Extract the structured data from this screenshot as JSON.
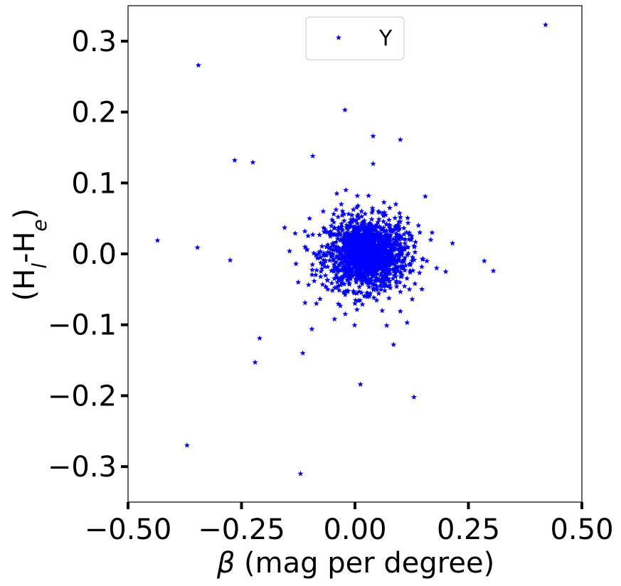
{
  "chart_data": {
    "type": "scatter",
    "xlabel_symbol": "β",
    "xlabel_text": " (mag per degree)",
    "ylabel_main": "(H",
    "ylabel_sub1": "l",
    "ylabel_mid": "-H",
    "ylabel_sub2": "e",
    "ylabel_end": ")",
    "xlim": [
      -0.5,
      0.5
    ],
    "ylim": [
      -0.35,
      0.35
    ],
    "x_ticks": [
      -0.5,
      -0.25,
      0.0,
      0.25,
      0.5
    ],
    "x_tick_labels": [
      "−0.50",
      "−0.25",
      "0.00",
      "0.25",
      "0.50"
    ],
    "y_ticks": [
      -0.3,
      -0.2,
      -0.1,
      0.0,
      0.1,
      0.2,
      0.3
    ],
    "y_tick_labels": [
      "−0.3",
      "−0.2",
      "−0.1",
      "0.0",
      "0.1",
      "0.2",
      "0.3"
    ],
    "grid": false,
    "legend_position": "top-center",
    "marker": "star",
    "color": "#0000ff",
    "series": [
      {
        "name": "Y",
        "points": [
          [
            0.42,
            0.323
          ],
          [
            -0.345,
            0.266
          ],
          [
            -0.022,
            0.203
          ],
          [
            0.04,
            0.166
          ],
          [
            0.1,
            0.161
          ],
          [
            -0.265,
            0.132
          ],
          [
            -0.225,
            0.129
          ],
          [
            -0.093,
            0.138
          ],
          [
            0.04,
            0.127
          ],
          [
            -0.04,
            0.085
          ],
          [
            -0.02,
            0.09
          ],
          [
            0.155,
            0.081
          ],
          [
            0.03,
            0.082
          ],
          [
            -0.155,
            0.037
          ],
          [
            -0.435,
            0.019
          ],
          [
            -0.347,
            0.009
          ],
          [
            -0.275,
            -0.009
          ],
          [
            0.215,
            0.015
          ],
          [
            0.285,
            -0.01
          ],
          [
            0.305,
            -0.024
          ],
          [
            0.2,
            -0.025
          ],
          [
            -0.13,
            -0.014
          ],
          [
            -0.125,
            -0.04
          ],
          [
            -0.11,
            -0.069
          ],
          [
            -0.085,
            -0.07
          ],
          [
            -0.045,
            -0.092
          ],
          [
            -0.095,
            -0.106
          ],
          [
            -0.21,
            -0.119
          ],
          [
            -0.22,
            -0.153
          ],
          [
            -0.115,
            -0.14
          ],
          [
            0.085,
            -0.128
          ],
          [
            0.07,
            -0.101
          ],
          [
            0.1,
            -0.081
          ],
          [
            0.115,
            -0.097
          ],
          [
            0.012,
            -0.184
          ],
          [
            0.13,
            -0.202
          ],
          [
            -0.37,
            -0.27
          ],
          [
            -0.12,
            -0.31
          ],
          [
            0.0,
            -0.07
          ],
          [
            -0.06,
            -0.05
          ],
          [
            0.17,
            0.03
          ],
          [
            0.14,
            0.04
          ],
          [
            -0.1,
            0.05
          ],
          [
            -0.07,
            0.06
          ],
          [
            0.12,
            -0.05
          ],
          [
            0.09,
            0.07
          ],
          [
            -0.03,
            0.07
          ],
          [
            0.06,
            -0.08
          ],
          [
            0.18,
            -0.02
          ]
        ]
      }
    ],
    "cluster": {
      "center": [
        0.025,
        0.0
      ],
      "spread": [
        0.045,
        0.025
      ],
      "count": 1500
    }
  }
}
